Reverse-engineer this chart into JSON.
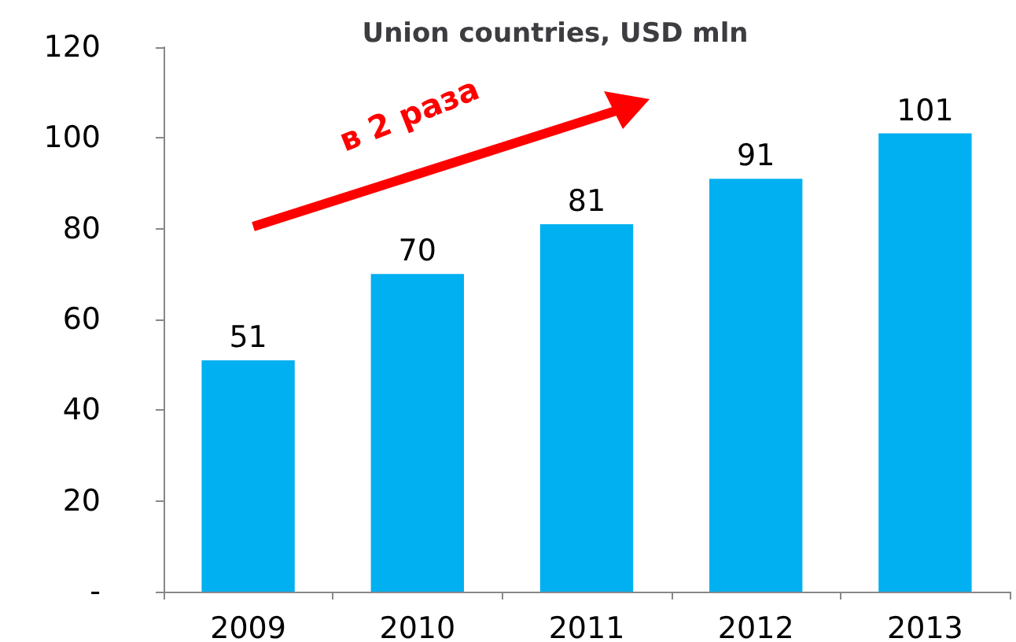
{
  "chart_data": {
    "type": "bar",
    "title": "Union countries, USD mln",
    "categories": [
      "2009",
      "2010",
      "2011",
      "2012",
      "2013"
    ],
    "values": [
      51,
      70,
      81,
      91,
      101
    ],
    "color": "#00b0f0",
    "ylim": [
      0,
      120
    ],
    "yticks": [
      {
        "value": 0,
        "label": "-"
      },
      20,
      40,
      60,
      80,
      100,
      120
    ],
    "data_labels": true,
    "grid": false,
    "annotations": [
      "в 2 раза"
    ]
  }
}
